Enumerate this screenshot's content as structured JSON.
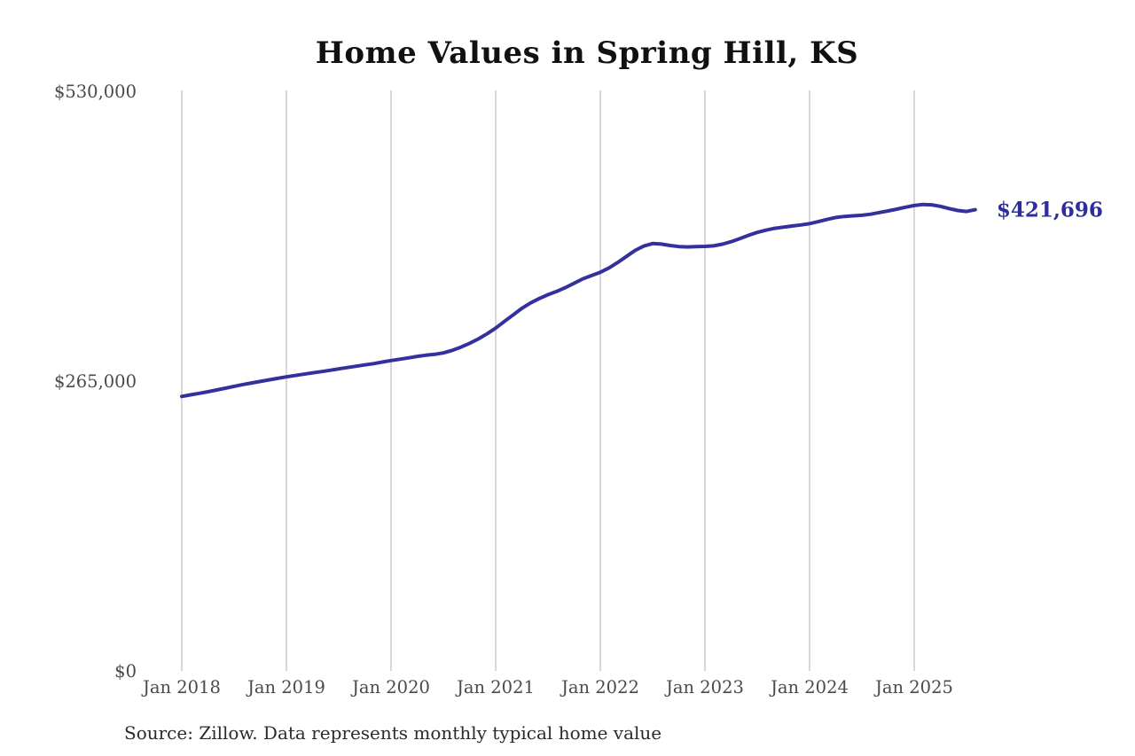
{
  "title": "Home Values in Spring Hill, KS",
  "source_note": "Source: Zillow. Data represents monthly typical home value",
  "end_label": "$421,696",
  "colors": {
    "line": "#34309e",
    "end_label": "#2d2d9f",
    "gridline": "#c3c3c3",
    "axis_text": "#4a4a4a",
    "title_text": "#111111",
    "source_text": "#2b2b2b",
    "background": "#ffffff"
  },
  "chart_data": {
    "type": "line",
    "title": "Home Values in Spring Hill, KS",
    "series_name": "Monthly typical home value",
    "frequency": "monthly",
    "start_month": "2018-01",
    "end_month": "2025-08",
    "x_ticks": [
      "Jan 2018",
      "Jan 2019",
      "Jan 2020",
      "Jan 2021",
      "Jan 2022",
      "Jan 2023",
      "Jan 2024",
      "Jan 2025"
    ],
    "y_ticks": [
      {
        "value": 0,
        "label": "$0"
      },
      {
        "value": 265000,
        "label": "$265,000"
      },
      {
        "value": 530000,
        "label": "$530,000"
      }
    ],
    "ylim": [
      0,
      530000
    ],
    "grid": "vertical-only",
    "legend": "none",
    "end_value": 421696,
    "end_value_label": "$421,696",
    "values": [
      251000,
      252400,
      253800,
      255300,
      256900,
      258500,
      260200,
      261800,
      263300,
      264700,
      266100,
      267500,
      268900,
      270100,
      271300,
      272500,
      273700,
      274900,
      276200,
      277400,
      278600,
      279800,
      281000,
      282400,
      283800,
      285000,
      286200,
      287600,
      288700,
      289500,
      290800,
      293000,
      296000,
      299500,
      303500,
      308200,
      313500,
      319500,
      325500,
      331500,
      336500,
      340500,
      344000,
      347000,
      350500,
      354500,
      358500,
      361500,
      364500,
      368500,
      373500,
      379000,
      384500,
      388500,
      390800,
      390300,
      389000,
      388000,
      387700,
      387900,
      388200,
      388700,
      390200,
      392500,
      395300,
      398300,
      401000,
      403000,
      404700,
      405800,
      406800,
      407800,
      409000,
      410800,
      412800,
      414600,
      415600,
      416100,
      416600,
      417600,
      419100,
      420600,
      422200,
      424000,
      425500,
      426500,
      426200,
      424800,
      422800,
      421000,
      420100,
      421696
    ]
  }
}
